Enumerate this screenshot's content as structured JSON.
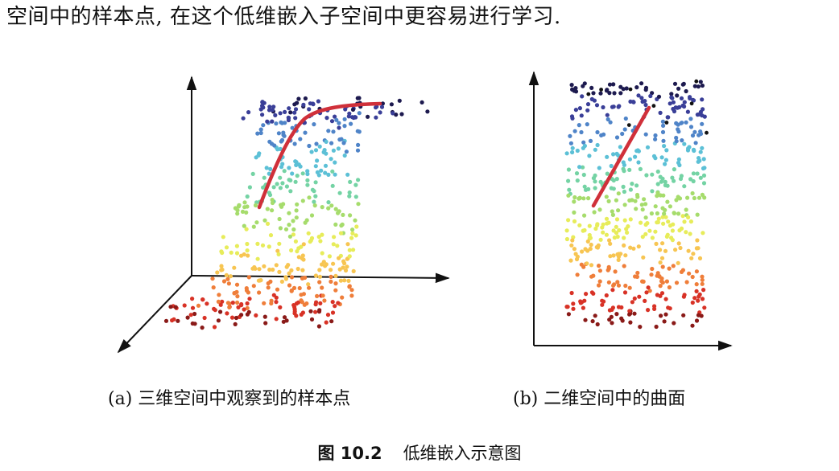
{
  "paper": {
    "intro_text": "空间中的样本点, 在这个低维嵌入子空间中更容易进行学习.",
    "subfigures": [
      {
        "label": "(a)",
        "caption": "三维空间中观察到的样本点"
      },
      {
        "label": "(b)",
        "caption": "二维空间中的曲面"
      }
    ],
    "figure": {
      "label": "图 10.2",
      "caption": "低维嵌入示意图"
    }
  },
  "colors": {
    "curve": "#d0303a",
    "axis": "#111111",
    "colormap": [
      "#1d1a4f",
      "#3a3f98",
      "#4f84c8",
      "#5cc0d6",
      "#74d3a4",
      "#a6dc6c",
      "#e7ec5a",
      "#f7c552",
      "#ef7e3a",
      "#d83226",
      "#8a1a18"
    ]
  }
}
